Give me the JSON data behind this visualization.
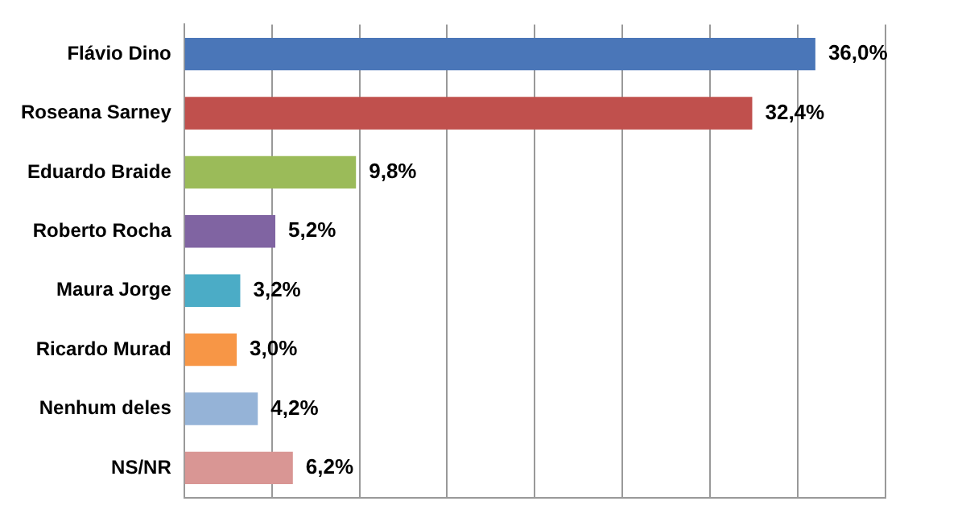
{
  "chart_data": {
    "type": "bar",
    "orientation": "horizontal",
    "categories": [
      "Flávio Dino",
      "Roseana Sarney",
      "Eduardo Braide",
      "Roberto Rocha",
      "Maura Jorge",
      "Ricardo Murad",
      "Nenhum deles",
      "NS/NR"
    ],
    "values": [
      36.0,
      32.4,
      9.8,
      5.2,
      3.2,
      3.0,
      4.2,
      6.2
    ],
    "colors": [
      "#4a76b8",
      "#c0504d",
      "#9bbb59",
      "#8064a2",
      "#4bacc6",
      "#f79646",
      "#95b3d7",
      "#d99694"
    ],
    "value_labels": [
      "36,0%",
      "32,4%",
      "9,8%",
      "5,2%",
      "3,2%",
      "3,0%",
      "4,2%",
      "6,2%"
    ],
    "grid": "x",
    "tick_labels": "y",
    "legend": false
  }
}
